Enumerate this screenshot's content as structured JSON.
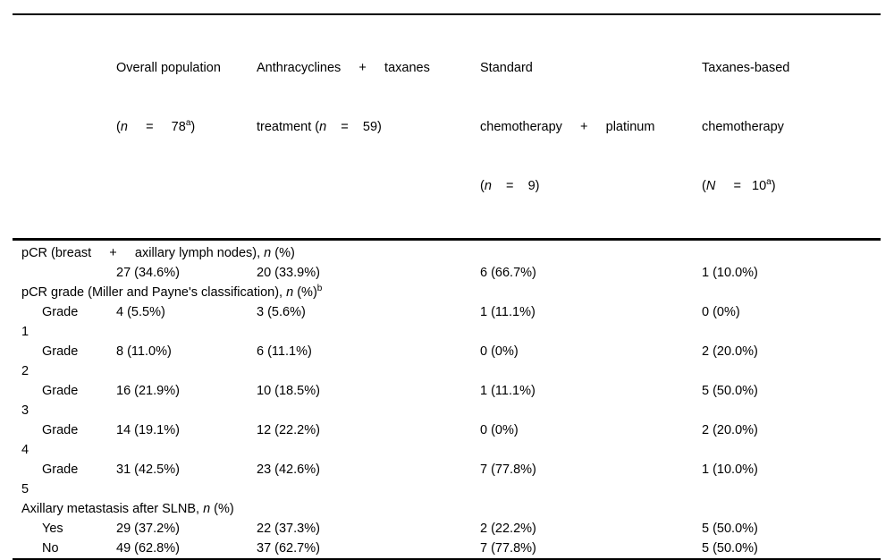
{
  "page": {
    "background": "#ffffff",
    "text_color": "#000000",
    "rule_color": "#000000"
  },
  "table": {
    "columns": [
      {
        "lines": []
      },
      {
        "lines": [
          "Overall population",
          "(*n*     =     78^a^)"
        ]
      },
      {
        "lines": [
          "Anthracyclines     +     taxanes",
          "treatment (*n*    =    59)"
        ]
      },
      {
        "lines": [
          "Standard",
          "chemotherapy     +     platinum",
          "(*n*    =    9)"
        ]
      },
      {
        "lines": [
          "Taxanes-based",
          "chemotherapy",
          "(*N*     =   10^a^)"
        ]
      }
    ],
    "rows": [
      {
        "type": "section",
        "label": "pCR (breast     +     axillary lymph nodes), *n* (%)"
      },
      {
        "type": "data",
        "label": "",
        "cells": [
          "27 (34.6%)",
          "20 (33.9%)",
          "6 (66.7%)",
          "1 (10.0%)"
        ]
      },
      {
        "type": "section",
        "label": "pCR grade (Miller and Payne's classification), *n* (%)^b^"
      },
      {
        "type": "data",
        "label": "Grade",
        "cells": [
          "4 (5.5%)",
          "3 (5.6%)",
          "1 (11.1%)",
          "0 (0%)"
        ]
      },
      {
        "type": "wrap",
        "label": "1"
      },
      {
        "type": "data",
        "label": "Grade",
        "cells": [
          "8 (11.0%)",
          "6 (11.1%)",
          "0 (0%)",
          "2 (20.0%)"
        ]
      },
      {
        "type": "wrap",
        "label": "2"
      },
      {
        "type": "data",
        "label": "Grade",
        "cells": [
          "16 (21.9%)",
          "10 (18.5%)",
          "1 (11.1%)",
          "5 (50.0%)"
        ]
      },
      {
        "type": "wrap",
        "label": "3"
      },
      {
        "type": "data",
        "label": "Grade",
        "cells": [
          "14 (19.1%)",
          "12 (22.2%)",
          "0 (0%)",
          "2 (20.0%)"
        ]
      },
      {
        "type": "wrap",
        "label": "4"
      },
      {
        "type": "data",
        "label": "Grade",
        "cells": [
          "31 (42.5%)",
          "23 (42.6%)",
          "7 (77.8%)",
          "1 (10.0%)"
        ]
      },
      {
        "type": "wrap",
        "label": "5"
      },
      {
        "type": "section",
        "label": "Axillary metastasis after SLNB, *n* (%)"
      },
      {
        "type": "data",
        "label": "Yes",
        "cells": [
          "29 (37.2%)",
          "22 (37.3%)",
          "2 (22.2%)",
          "5 (50.0%)"
        ]
      },
      {
        "type": "data",
        "label": "No",
        "cells": [
          "49 (62.8%)",
          "37 (62.7%)",
          "7 (77.8%)",
          "5 (50.0%)"
        ]
      }
    ]
  }
}
